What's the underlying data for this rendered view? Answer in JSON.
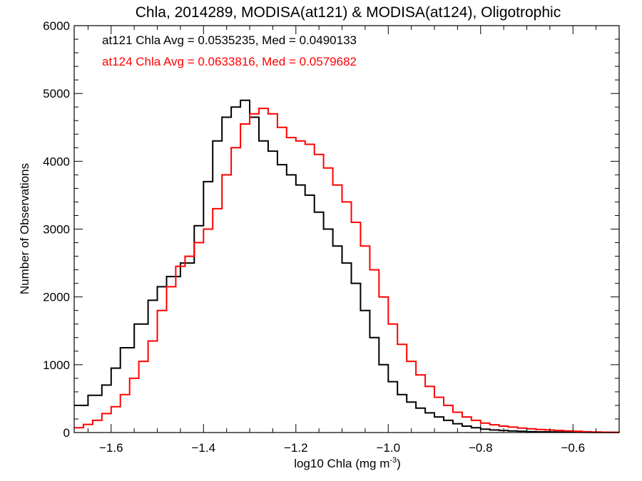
{
  "chart_data": {
    "type": "line",
    "subtype": "step-histogram",
    "title": "Chla, 2014289, MODISA(at121) & MODISA(at124), Oligotrophic",
    "xlabel_main": "log10 Chla (mg m",
    "xlabel_sup": "-3",
    "xlabel_close": ")",
    "ylabel": "Number of Observations",
    "xlim": [
      -1.68,
      -0.5
    ],
    "ylim": [
      0,
      6000
    ],
    "x_ticks": [
      -1.6,
      -1.4,
      -1.2,
      -1.0,
      -0.8,
      -0.6
    ],
    "x_tick_labels": [
      "−1.6",
      "−1.4",
      "−1.2",
      "−1.0",
      "−0.8",
      "−0.6"
    ],
    "y_ticks": [
      0,
      1000,
      2000,
      3000,
      4000,
      5000,
      6000
    ],
    "y_tick_labels": [
      "0",
      "1000",
      "2000",
      "3000",
      "4000",
      "5000",
      "6000"
    ],
    "annotations": [
      {
        "text": "at121 Chla Avg = 0.0535235, Med = 0.0490133",
        "color": "#000000"
      },
      {
        "text": "at124 Chla Avg = 0.0633816, Med = 0.0579682",
        "color": "#ff0000"
      }
    ],
    "series": [
      {
        "color": "#000000",
        "x": [
          -1.68,
          -1.65,
          -1.62,
          -1.6,
          -1.58,
          -1.55,
          -1.52,
          -1.5,
          -1.48,
          -1.45,
          -1.42,
          -1.4,
          -1.38,
          -1.36,
          -1.34,
          -1.32,
          -1.3,
          -1.28,
          -1.26,
          -1.24,
          -1.22,
          -1.2,
          -1.18,
          -1.16,
          -1.14,
          -1.12,
          -1.1,
          -1.08,
          -1.06,
          -1.04,
          -1.02,
          -1.0,
          -0.98,
          -0.96,
          -0.94,
          -0.92,
          -0.9,
          -0.88,
          -0.86,
          -0.84,
          -0.82,
          -0.8,
          -0.78,
          -0.76,
          -0.74,
          -0.72,
          -0.7,
          -0.68,
          -0.66,
          -0.64,
          -0.62,
          -0.6,
          -0.58,
          -0.56,
          -0.54,
          -0.52,
          -0.5
        ],
        "y": [
          400,
          550,
          700,
          950,
          1250,
          1600,
          1950,
          2150,
          2300,
          2500,
          3050,
          3700,
          4300,
          4650,
          4800,
          4900,
          4650,
          4300,
          4150,
          3950,
          3800,
          3650,
          3500,
          3250,
          3000,
          2750,
          2500,
          2200,
          1800,
          1400,
          1000,
          750,
          560,
          450,
          360,
          290,
          230,
          180,
          130,
          95,
          70,
          50,
          38,
          30,
          24,
          18,
          14,
          11,
          9,
          7,
          6,
          5,
          4,
          3,
          2,
          2,
          1
        ]
      },
      {
        "color": "#ff0000",
        "x": [
          -1.68,
          -1.66,
          -1.64,
          -1.62,
          -1.6,
          -1.58,
          -1.56,
          -1.54,
          -1.52,
          -1.5,
          -1.48,
          -1.46,
          -1.44,
          -1.42,
          -1.4,
          -1.38,
          -1.36,
          -1.34,
          -1.32,
          -1.3,
          -1.28,
          -1.26,
          -1.24,
          -1.22,
          -1.2,
          -1.18,
          -1.16,
          -1.14,
          -1.12,
          -1.1,
          -1.08,
          -1.06,
          -1.04,
          -1.02,
          -1.0,
          -0.98,
          -0.96,
          -0.94,
          -0.92,
          -0.9,
          -0.88,
          -0.86,
          -0.84,
          -0.82,
          -0.8,
          -0.78,
          -0.76,
          -0.74,
          -0.72,
          -0.7,
          -0.68,
          -0.66,
          -0.64,
          -0.62,
          -0.6,
          -0.58,
          -0.56,
          -0.54,
          -0.52,
          -0.5
        ],
        "y": [
          70,
          120,
          180,
          280,
          380,
          560,
          800,
          1050,
          1350,
          1800,
          2150,
          2450,
          2600,
          2800,
          3000,
          3300,
          3800,
          4200,
          4550,
          4700,
          4780,
          4700,
          4500,
          4350,
          4300,
          4250,
          4100,
          3900,
          3650,
          3400,
          3100,
          2750,
          2400,
          2000,
          1600,
          1300,
          1050,
          850,
          680,
          520,
          400,
          300,
          230,
          180,
          140,
          115,
          95,
          80,
          65,
          55,
          45,
          38,
          30,
          24,
          18,
          12,
          8,
          5,
          3,
          2
        ]
      }
    ]
  }
}
